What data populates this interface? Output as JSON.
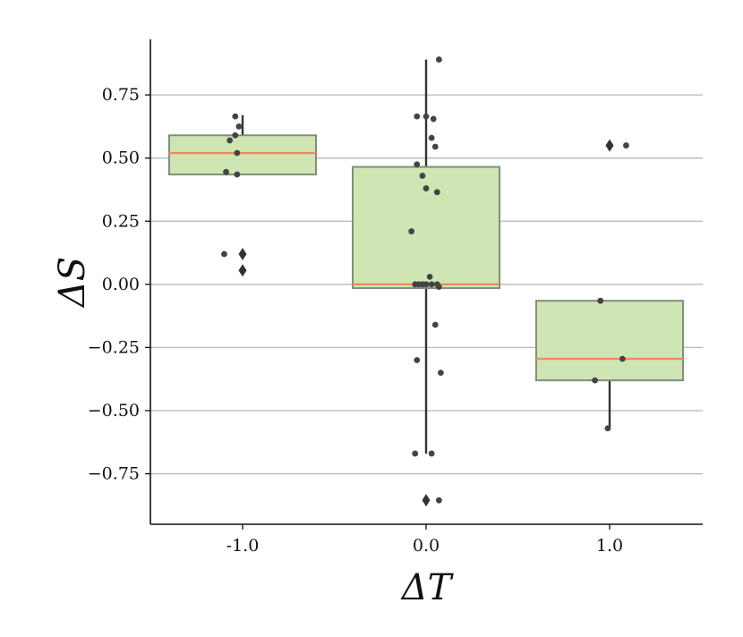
{
  "chart_data": {
    "type": "box",
    "title": "",
    "xlabel": "ΔT",
    "ylabel": "ΔS",
    "categories": [
      "-1.0",
      "0.0",
      "1.0"
    ],
    "ylim": [
      -0.95,
      0.97
    ],
    "y_ticks": [
      0.75,
      0.5,
      0.25,
      0.0,
      -0.25,
      -0.5,
      -0.75
    ],
    "y_tick_labels": [
      "0.75",
      "0.50",
      "0.25",
      "0.00",
      "−0.25",
      "−0.50",
      "−0.75"
    ],
    "grid": "horizontal",
    "colors": {
      "box_fill": "#cfe6b4",
      "box_edge": "#7f8f79",
      "median": "#f08a5d",
      "whisker": "#333333",
      "points": "#444444",
      "grid": "#b8b8b8"
    },
    "boxes": [
      {
        "category": "-1.0",
        "q1": 0.435,
        "median": 0.52,
        "q3": 0.59,
        "whisker_low": 0.435,
        "whisker_high": 0.67,
        "outliers": [
          0.12,
          0.055
        ],
        "points": [
          [
            -0.04,
            0.665
          ],
          [
            -0.02,
            0.625
          ],
          [
            -0.07,
            0.57
          ],
          [
            -0.04,
            0.59
          ],
          [
            -0.03,
            0.52
          ],
          [
            -0.09,
            0.445
          ],
          [
            -0.03,
            0.435
          ],
          [
            -0.1,
            0.12
          ]
        ]
      },
      {
        "category": "0.0",
        "q1": -0.015,
        "median": 0.0,
        "q3": 0.465,
        "whisker_low": -0.67,
        "whisker_high": 0.89,
        "outliers": [
          -0.855
        ],
        "points": [
          [
            0.07,
            0.89
          ],
          [
            -0.05,
            0.665
          ],
          [
            0.0,
            0.665
          ],
          [
            0.04,
            0.655
          ],
          [
            0.03,
            0.58
          ],
          [
            0.05,
            0.545
          ],
          [
            -0.05,
            0.475
          ],
          [
            -0.02,
            0.43
          ],
          [
            0.0,
            0.38
          ],
          [
            0.06,
            0.365
          ],
          [
            -0.08,
            0.21
          ],
          [
            0.02,
            0.03
          ],
          [
            -0.06,
            0.0
          ],
          [
            -0.04,
            0.0
          ],
          [
            -0.02,
            0.0
          ],
          [
            0.0,
            0.0
          ],
          [
            0.03,
            0.0
          ],
          [
            0.06,
            0.0
          ],
          [
            0.07,
            -0.01
          ],
          [
            0.05,
            -0.16
          ],
          [
            -0.05,
            -0.3
          ],
          [
            0.08,
            -0.35
          ],
          [
            -0.06,
            -0.67
          ],
          [
            0.03,
            -0.67
          ],
          [
            0.07,
            -0.855
          ]
        ]
      },
      {
        "category": "1.0",
        "q1": -0.38,
        "median": -0.295,
        "q3": -0.065,
        "whisker_low": -0.57,
        "whisker_high": -0.065,
        "outliers": [
          0.55
        ],
        "points": [
          [
            0.09,
            0.55
          ],
          [
            -0.05,
            -0.065
          ],
          [
            0.07,
            -0.295
          ],
          [
            -0.08,
            -0.38
          ],
          [
            -0.01,
            -0.57
          ]
        ]
      }
    ]
  }
}
